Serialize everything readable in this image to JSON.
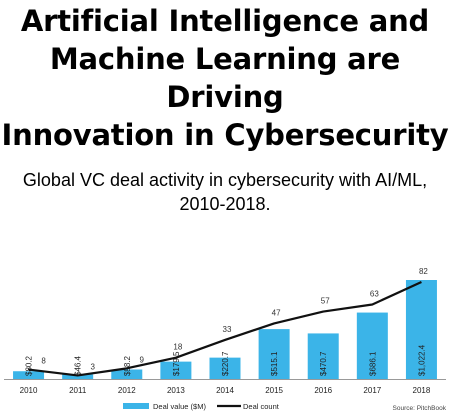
{
  "headline": {
    "lines": [
      "Artificial Intelligence and",
      "Machine Learning are Driving",
      "Innovation in Cybersecurity"
    ]
  },
  "subtitle": {
    "lines": [
      "Global VC deal activity in cybersecurity with AI/ML,",
      "2010-2018."
    ]
  },
  "chart_data": {
    "type": "bar",
    "categories": [
      "2010",
      "2011",
      "2012",
      "2013",
      "2014",
      "2015",
      "2016",
      "2017",
      "2018"
    ],
    "series": [
      {
        "name": "Deal value ($M)",
        "type": "bar",
        "color": "#3bb4e8",
        "values": [
          80.2,
          46.4,
          98.2,
          179.5,
          220.7,
          515.1,
          470.7,
          686.1,
          1022.4
        ],
        "labels": [
          "$80.2",
          "$46.4",
          "$98.2",
          "$179.5",
          "$220.7",
          "$515.1",
          "$470.7",
          "$686.1",
          "$1,022.4"
        ]
      },
      {
        "name": "Deal count",
        "type": "line",
        "color": "#111111",
        "values": [
          8,
          3,
          9,
          18,
          33,
          47,
          57,
          63,
          82
        ],
        "labels": [
          "8",
          "3",
          "9",
          "18",
          "33",
          "47",
          "57",
          "63",
          "82"
        ]
      }
    ],
    "title": "",
    "xlabel": "",
    "ylabel": "",
    "legend": "bottom",
    "grid": false
  },
  "source": "Source: PitchBook"
}
